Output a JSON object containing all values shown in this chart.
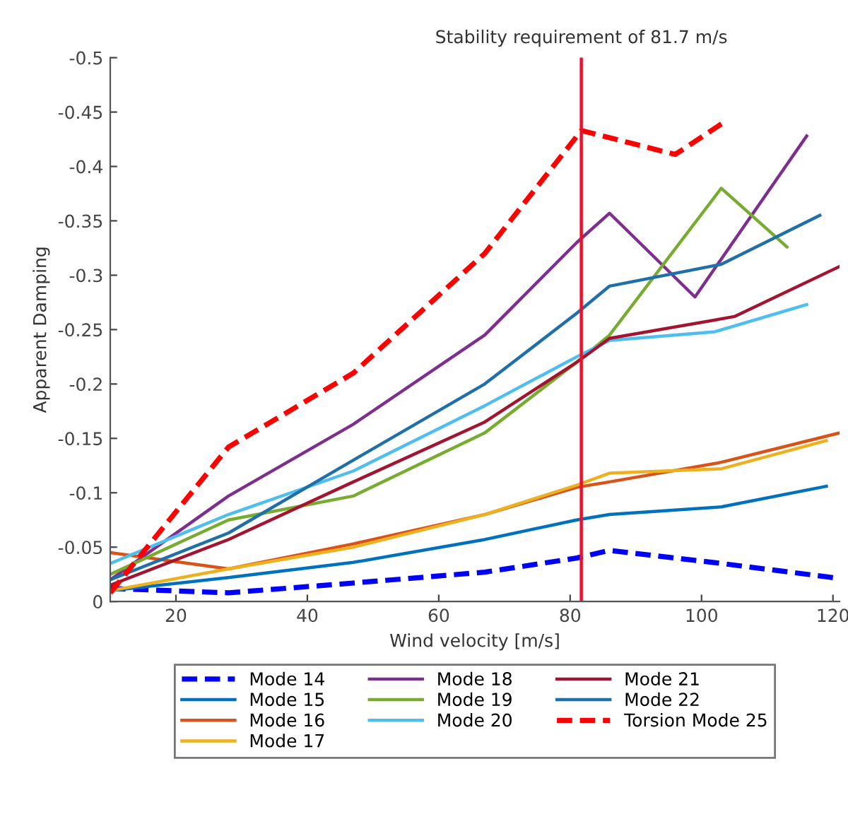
{
  "chart_data": {
    "type": "line",
    "xlabel": "Wind velocity [m/s]",
    "ylabel": "Apparent Damping",
    "xlim": [
      10,
      121
    ],
    "xticks": [
      20,
      40,
      60,
      80,
      100,
      120
    ],
    "ylim": [
      0,
      -0.5
    ],
    "yticks": [
      0,
      -0.05,
      -0.1,
      -0.15,
      -0.2,
      -0.25,
      -0.3,
      -0.35,
      -0.4,
      -0.45,
      -0.5
    ],
    "grid": false,
    "legend": "bottom",
    "marker": "none",
    "ref_lines": [
      {
        "axis": "x",
        "value": 81.7,
        "label": "Stability requirement of 81.7 m/s",
        "color": "#e8132b",
        "line_style": "solid"
      }
    ],
    "series": [
      {
        "name": "Mode 14",
        "color": "#0000ff",
        "line_style": "dashed",
        "x": [
          10,
          28,
          47,
          67,
          81,
          86,
          103,
          120
        ],
        "values": [
          -0.012,
          -0.008,
          -0.017,
          -0.027,
          -0.04,
          -0.047,
          -0.035,
          -0.022
        ]
      },
      {
        "name": "Mode 15",
        "color": "#0072bd",
        "line_style": "solid",
        "x": [
          10,
          28,
          47,
          67,
          81,
          86,
          103,
          119
        ],
        "values": [
          -0.01,
          -0.022,
          -0.036,
          -0.057,
          -0.075,
          -0.08,
          -0.087,
          -0.106
        ]
      },
      {
        "name": "Mode 16",
        "color": "#d95319",
        "line_style": "solid",
        "x": [
          10,
          28,
          47,
          67,
          81,
          86,
          103,
          121
        ],
        "values": [
          -0.045,
          -0.03,
          -0.053,
          -0.08,
          -0.105,
          -0.11,
          -0.128,
          -0.155
        ]
      },
      {
        "name": "Mode 17",
        "color": "#edb120",
        "line_style": "solid",
        "x": [
          10,
          28,
          47,
          67,
          81,
          86,
          103,
          119
        ],
        "values": [
          -0.01,
          -0.03,
          -0.05,
          -0.08,
          -0.107,
          -0.118,
          -0.122,
          -0.148
        ]
      },
      {
        "name": "Mode 18",
        "color": "#7e2f8e",
        "line_style": "solid",
        "x": [
          10,
          28,
          47,
          67,
          81,
          86,
          99,
          116
        ],
        "values": [
          -0.02,
          -0.097,
          -0.163,
          -0.245,
          -0.33,
          -0.357,
          -0.28,
          -0.428
        ]
      },
      {
        "name": "Mode 19",
        "color": "#77ac30",
        "line_style": "solid",
        "x": [
          10,
          28,
          47,
          67,
          81,
          86,
          103,
          113
        ],
        "values": [
          -0.025,
          -0.075,
          -0.097,
          -0.155,
          -0.22,
          -0.245,
          -0.38,
          -0.326
        ]
      },
      {
        "name": "Mode 20",
        "color": "#4dbeee",
        "line_style": "solid",
        "x": [
          10,
          28,
          47,
          67,
          81,
          86,
          102,
          116
        ],
        "values": [
          -0.035,
          -0.08,
          -0.12,
          -0.18,
          -0.225,
          -0.24,
          -0.248,
          -0.273
        ]
      },
      {
        "name": "Mode 21",
        "color": "#a2142f",
        "line_style": "solid",
        "x": [
          10,
          28,
          47,
          67,
          81,
          86,
          105,
          121
        ],
        "values": [
          -0.015,
          -0.057,
          -0.11,
          -0.165,
          -0.22,
          -0.242,
          -0.262,
          -0.308
        ]
      },
      {
        "name": "Mode 22",
        "color": "#1f6fa8",
        "line_style": "solid",
        "x": [
          10,
          28,
          47,
          67,
          81,
          86,
          103,
          118
        ],
        "values": [
          -0.02,
          -0.063,
          -0.13,
          -0.2,
          -0.265,
          -0.29,
          -0.31,
          -0.355
        ]
      },
      {
        "name": "Torsion Mode 25",
        "color": "#ff0000",
        "line_style": "dashed",
        "x": [
          10,
          28,
          47,
          67,
          81.7,
          96,
          103.5
        ],
        "values": [
          -0.008,
          -0.142,
          -0.21,
          -0.32,
          -0.433,
          -0.411,
          -0.441
        ]
      }
    ]
  }
}
